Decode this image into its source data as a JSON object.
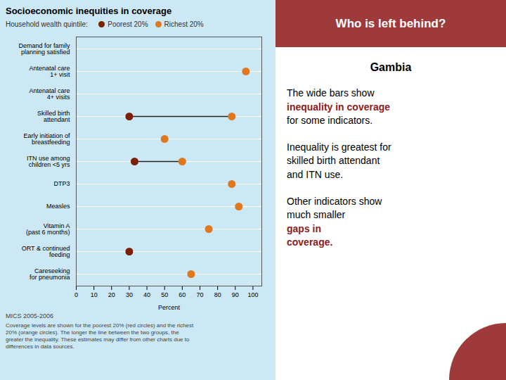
{
  "chart_data": {
    "type": "dot",
    "orientation": "horizontal",
    "title": "Socioeconomic inequities in coverage",
    "legend": "top left",
    "legend_title": "Household wealth quintile:  ",
    "categories": [
      "Demand for family\nplanning satisfied",
      "Antenatal care\n1+ visit",
      "Antenatal care\n4+ visits",
      "Skilled birth\nattendant",
      "Early initiation of\nbreastfeeding",
      "ITN use among\nchildren <5 yrs",
      "DTP3",
      "Measles",
      "Vitamin A\n(past 6 months)",
      "ORT & continued\nfeeding",
      "Careseeking\nfor pneumonia"
    ],
    "series": [
      {
        "name": "Poorest 20%",
        "color": "#7B2000",
        "values": [
          null,
          null,
          null,
          30,
          null,
          33,
          null,
          null,
          null,
          30,
          null
        ]
      },
      {
        "name": "Richest 20%",
        "color": "#E07820",
        "values": [
          null,
          96,
          null,
          88,
          50,
          60,
          88,
          92,
          75,
          null,
          65
        ]
      }
    ],
    "xlabel": "Percent",
    "xlim": [
      0,
      105
    ],
    "xticks": [
      0,
      10,
      20,
      30,
      40,
      50,
      60,
      70,
      80,
      90,
      100
    ],
    "grid": true,
    "source": "MICS 2005-2006",
    "footnote": "Coverage levels are shown for the poorest 20% (red circles) and the richest\n20% (orange circles). The longer the line between the two groups, the\ngreater the inequality. These estimates may differ from other charts due to\ndifferences in data sources.",
    "side_panel": {
      "header": {
        "text": "Who is left behind?",
        "color": "#9E3A3A"
      },
      "heading": "Gambia",
      "paragraphs": [
        [
          {
            "text": "The wide bars show"
          },
          {
            "text": "inequality in coverage",
            "color": "#8B2020"
          },
          {
            "text": "for some indicators."
          }
        ],
        [
          {
            "text": "Inequality is greatest for\nskilled birth attendant\nand ITN use."
          }
        ],
        [
          {
            "text": "Other indicators show\nmuch smaller "
          },
          {
            "text": "gaps in\ncoverage.",
            "color": "#8B2020"
          }
        ]
      ]
    }
  }
}
